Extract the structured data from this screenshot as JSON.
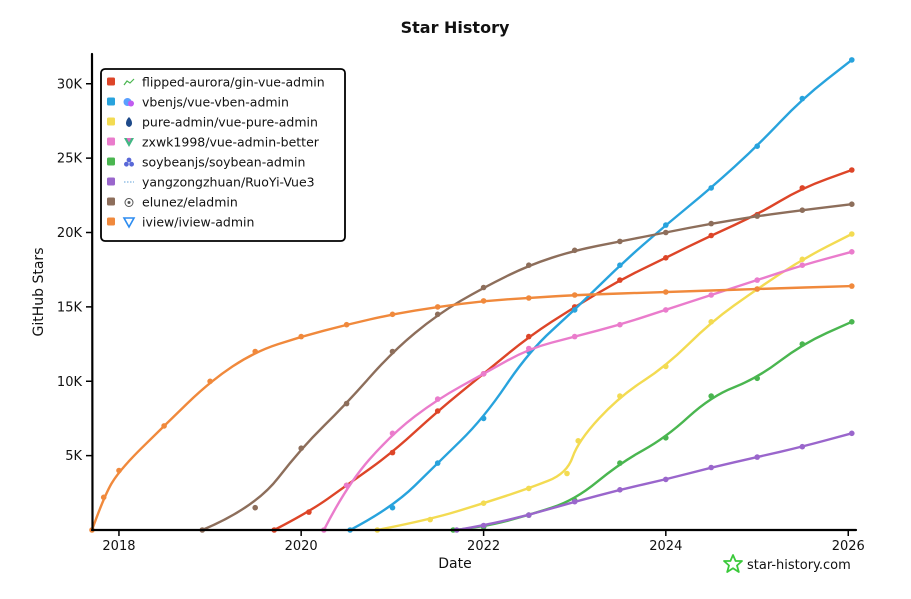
{
  "chart_data": {
    "type": "line",
    "title": "Star History",
    "xlabel": "Date",
    "ylabel": "GitHub Stars",
    "xlim": [
      "2017-09-15",
      "2026-02-01"
    ],
    "ylim": [
      0,
      32000
    ],
    "x_ticks": [
      {
        "date": "2018-01-01",
        "label": "2018"
      },
      {
        "date": "2020-01-01",
        "label": "2020"
      },
      {
        "date": "2022-01-01",
        "label": "2022"
      },
      {
        "date": "2024-01-01",
        "label": "2024"
      },
      {
        "date": "2026-01-01",
        "label": "2026"
      }
    ],
    "y_ticks": [
      {
        "value": 5000,
        "label": "5K"
      },
      {
        "value": 10000,
        "label": "10K"
      },
      {
        "value": 15000,
        "label": "15K"
      },
      {
        "value": 20000,
        "label": "20K"
      },
      {
        "value": 25000,
        "label": "25K"
      },
      {
        "value": 30000,
        "label": "30K"
      }
    ],
    "grid": false,
    "legend_position": "top-left",
    "series": [
      {
        "name": "flipped-aurora/gin-vue-admin",
        "color": "#dd4528",
        "icon": "chart-icon",
        "points": [
          [
            "2019-09-15",
            0
          ],
          [
            "2020-02-01",
            1200
          ],
          [
            "2020-07-01",
            3000
          ],
          [
            "2021-01-01",
            5200
          ],
          [
            "2021-07-01",
            8000
          ],
          [
            "2022-01-01",
            10500
          ],
          [
            "2022-07-01",
            13000
          ],
          [
            "2023-01-01",
            15000
          ],
          [
            "2023-07-01",
            16800
          ],
          [
            "2024-01-01",
            18300
          ],
          [
            "2024-07-01",
            19800
          ],
          [
            "2025-01-01",
            21200
          ],
          [
            "2025-07-01",
            23000
          ],
          [
            "2026-01-15",
            24200
          ]
        ]
      },
      {
        "name": "vbenjs/vue-vben-admin",
        "color": "#28a3dd",
        "icon": "vben-logo-icon",
        "points": [
          [
            "2020-07-15",
            0
          ],
          [
            "2021-01-01",
            1500
          ],
          [
            "2021-07-01",
            4500
          ],
          [
            "2022-01-01",
            7500
          ],
          [
            "2022-07-01",
            12000
          ],
          [
            "2023-01-01",
            14800
          ],
          [
            "2023-07-01",
            17800
          ],
          [
            "2024-01-01",
            20500
          ],
          [
            "2024-07-01",
            23000
          ],
          [
            "2025-01-01",
            25800
          ],
          [
            "2025-07-01",
            29000
          ],
          [
            "2026-01-15",
            31600
          ]
        ]
      },
      {
        "name": "pure-admin/vue-pure-admin",
        "color": "#f3db52",
        "icon": "pure-logo-icon",
        "points": [
          [
            "2020-11-01",
            0
          ],
          [
            "2021-06-01",
            700
          ],
          [
            "2022-01-01",
            1800
          ],
          [
            "2022-07-01",
            2800
          ],
          [
            "2022-12-01",
            3800
          ],
          [
            "2023-01-15",
            6000
          ],
          [
            "2023-07-01",
            9000
          ],
          [
            "2024-01-01",
            11000
          ],
          [
            "2024-07-01",
            14000
          ],
          [
            "2025-01-01",
            16200
          ],
          [
            "2025-07-01",
            18200
          ],
          [
            "2026-01-15",
            19900
          ]
        ]
      },
      {
        "name": "zxwk1998/vue-admin-better",
        "color": "#ea7ccc",
        "icon": "vue-logo-icon",
        "points": [
          [
            "2020-04-01",
            0
          ],
          [
            "2020-07-01",
            3000
          ],
          [
            "2021-01-01",
            6500
          ],
          [
            "2021-07-01",
            8800
          ],
          [
            "2022-01-01",
            10500
          ],
          [
            "2022-07-01",
            12200
          ],
          [
            "2023-01-01",
            13000
          ],
          [
            "2023-07-01",
            13800
          ],
          [
            "2024-01-01",
            14800
          ],
          [
            "2024-07-01",
            15800
          ],
          [
            "2025-01-01",
            16800
          ],
          [
            "2025-07-01",
            17800
          ],
          [
            "2026-01-15",
            18700
          ]
        ]
      },
      {
        "name": "soybeanjs/soybean-admin",
        "color": "#4ab650",
        "icon": "soybean-logo-icon",
        "points": [
          [
            "2021-09-01",
            0
          ],
          [
            "2022-01-01",
            200
          ],
          [
            "2022-07-01",
            1000
          ],
          [
            "2023-01-01",
            2000
          ],
          [
            "2023-07-01",
            4500
          ],
          [
            "2024-01-01",
            6200
          ],
          [
            "2024-07-01",
            9000
          ],
          [
            "2025-01-01",
            10200
          ],
          [
            "2025-07-01",
            12500
          ],
          [
            "2026-01-15",
            14000
          ]
        ]
      },
      {
        "name": "yangzongzhuan/RuoYi-Vue3",
        "color": "#9a66cc",
        "icon": "dotted-line-icon",
        "points": [
          [
            "2021-09-15",
            0
          ],
          [
            "2022-01-01",
            300
          ],
          [
            "2022-07-01",
            1000
          ],
          [
            "2023-01-01",
            1900
          ],
          [
            "2023-07-01",
            2700
          ],
          [
            "2024-01-01",
            3400
          ],
          [
            "2024-07-01",
            4200
          ],
          [
            "2025-01-01",
            4900
          ],
          [
            "2025-07-01",
            5600
          ],
          [
            "2026-01-15",
            6500
          ]
        ]
      },
      {
        "name": "elunez/eladmin",
        "color": "#8d6e5b",
        "icon": "github-octocat-icon",
        "points": [
          [
            "2018-12-01",
            0
          ],
          [
            "2019-07-01",
            1500
          ],
          [
            "2020-01-01",
            5500
          ],
          [
            "2020-07-01",
            8500
          ],
          [
            "2021-01-01",
            12000
          ],
          [
            "2021-07-01",
            14500
          ],
          [
            "2022-01-01",
            16300
          ],
          [
            "2022-07-01",
            17800
          ],
          [
            "2023-01-01",
            18800
          ],
          [
            "2023-07-01",
            19400
          ],
          [
            "2024-01-01",
            20000
          ],
          [
            "2024-07-01",
            20600
          ],
          [
            "2025-01-01",
            21100
          ],
          [
            "2025-07-01",
            21500
          ],
          [
            "2026-01-15",
            21900
          ]
        ]
      },
      {
        "name": "iview/iview-admin",
        "color": "#f0893c",
        "icon": "iview-logo-icon",
        "points": [
          [
            "2017-09-15",
            0
          ],
          [
            "2017-11-01",
            2200
          ],
          [
            "2018-01-01",
            4000
          ],
          [
            "2018-07-01",
            7000
          ],
          [
            "2019-01-01",
            10000
          ],
          [
            "2019-07-01",
            12000
          ],
          [
            "2020-01-01",
            13000
          ],
          [
            "2020-07-01",
            13800
          ],
          [
            "2021-01-01",
            14500
          ],
          [
            "2021-07-01",
            15000
          ],
          [
            "2022-01-01",
            15400
          ],
          [
            "2022-07-01",
            15600
          ],
          [
            "2023-01-01",
            15800
          ],
          [
            "2024-01-01",
            16000
          ],
          [
            "2025-01-01",
            16200
          ],
          [
            "2026-01-15",
            16400
          ]
        ]
      }
    ]
  },
  "brand": {
    "text": "star-history.com",
    "icon": "star-history-logo-icon",
    "color": "#3bc93b"
  }
}
